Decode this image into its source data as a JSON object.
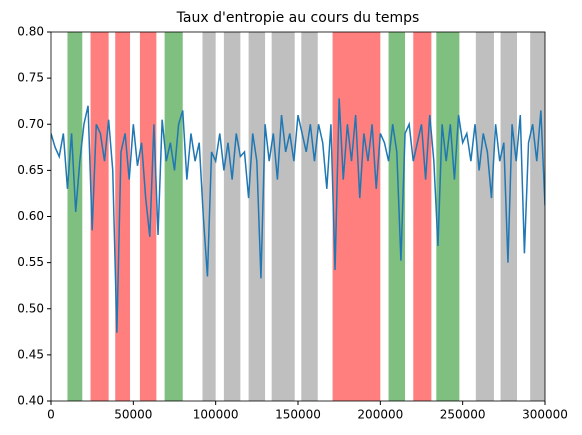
{
  "chart_data": {
    "type": "line",
    "title": "Taux d'entropie au cours du temps",
    "x": [
      0,
      2500,
      5000,
      7500,
      10000,
      12500,
      15000,
      17500,
      20000,
      22500,
      25000,
      27500,
      30000,
      32500,
      35000,
      37500,
      40000,
      42500,
      45000,
      47500,
      50000,
      52500,
      55000,
      57500,
      60000,
      62500,
      65000,
      67500,
      70000,
      72500,
      75000,
      77500,
      80000,
      82500,
      85000,
      87500,
      90000,
      92500,
      95000,
      97500,
      100000,
      102500,
      105000,
      107500,
      110000,
      112500,
      115000,
      117500,
      120000,
      122500,
      125000,
      127500,
      130000,
      132500,
      135000,
      137500,
      140000,
      142500,
      145000,
      147500,
      150000,
      152500,
      155000,
      157500,
      160000,
      162500,
      165000,
      167500,
      170000,
      172500,
      175000,
      177500,
      180000,
      182500,
      185000,
      187500,
      190000,
      192500,
      195000,
      197500,
      200000,
      202500,
      205000,
      207500,
      210000,
      212500,
      215000,
      217500,
      220000,
      222500,
      225000,
      227500,
      230000,
      232500,
      235000,
      237500,
      240000,
      242500,
      245000,
      247500,
      250000,
      252500,
      255000,
      257500,
      260000,
      262500,
      265000,
      267500,
      270000,
      272500,
      275000,
      277500,
      280000,
      282500,
      285000,
      287500,
      290000,
      292500,
      295000,
      297500,
      300000
    ],
    "series": [
      {
        "color": "#1f77b4",
        "values": [
          0.69,
          0.675,
          0.665,
          0.69,
          0.63,
          0.69,
          0.605,
          0.66,
          0.7,
          0.72,
          0.585,
          0.7,
          0.69,
          0.66,
          0.705,
          0.65,
          0.474,
          0.67,
          0.69,
          0.64,
          0.7,
          0.655,
          0.68,
          0.62,
          0.578,
          0.7,
          0.58,
          0.705,
          0.66,
          0.68,
          0.65,
          0.7,
          0.715,
          0.64,
          0.69,
          0.66,
          0.68,
          0.6,
          0.535,
          0.67,
          0.66,
          0.69,
          0.65,
          0.68,
          0.64,
          0.69,
          0.665,
          0.67,
          0.62,
          0.69,
          0.66,
          0.533,
          0.7,
          0.66,
          0.69,
          0.64,
          0.71,
          0.67,
          0.69,
          0.66,
          0.71,
          0.69,
          0.67,
          0.7,
          0.66,
          0.7,
          0.68,
          0.63,
          0.7,
          0.542,
          0.728,
          0.64,
          0.7,
          0.66,
          0.71,
          0.62,
          0.69,
          0.66,
          0.7,
          0.63,
          0.69,
          0.68,
          0.66,
          0.7,
          0.67,
          0.552,
          0.69,
          0.7,
          0.66,
          0.68,
          0.7,
          0.64,
          0.71,
          0.66,
          0.568,
          0.7,
          0.66,
          0.7,
          0.64,
          0.71,
          0.68,
          0.69,
          0.66,
          0.7,
          0.65,
          0.69,
          0.67,
          0.62,
          0.7,
          0.66,
          0.68,
          0.55,
          0.7,
          0.66,
          0.71,
          0.56,
          0.68,
          0.7,
          0.66,
          0.715,
          0.612
        ]
      }
    ],
    "spans": [
      {
        "start": 10000,
        "end": 19000,
        "color": "green"
      },
      {
        "start": 24000,
        "end": 35000,
        "color": "red"
      },
      {
        "start": 39000,
        "end": 48000,
        "color": "red"
      },
      {
        "start": 54000,
        "end": 64000,
        "color": "red"
      },
      {
        "start": 69000,
        "end": 80000,
        "color": "green"
      },
      {
        "start": 92000,
        "end": 100000,
        "color": "gray"
      },
      {
        "start": 105000,
        "end": 115000,
        "color": "gray"
      },
      {
        "start": 120000,
        "end": 130000,
        "color": "gray"
      },
      {
        "start": 134000,
        "end": 148000,
        "color": "gray"
      },
      {
        "start": 152000,
        "end": 162000,
        "color": "gray"
      },
      {
        "start": 171000,
        "end": 200000,
        "color": "red"
      },
      {
        "start": 205000,
        "end": 215000,
        "color": "green"
      },
      {
        "start": 220000,
        "end": 231000,
        "color": "red"
      },
      {
        "start": 234000,
        "end": 248000,
        "color": "green"
      },
      {
        "start": 258000,
        "end": 269000,
        "color": "gray"
      },
      {
        "start": 273000,
        "end": 283000,
        "color": "gray"
      },
      {
        "start": 291000,
        "end": 300000,
        "color": "gray"
      }
    ],
    "span_alpha": 0.5,
    "xlim": [
      0,
      300000
    ],
    "xticks": [
      0,
      50000,
      100000,
      150000,
      200000,
      250000,
      300000
    ],
    "ylim": [
      0.4,
      0.8
    ],
    "yticks": [
      {
        "value": 0.4,
        "label": "0.40"
      },
      0.45,
      {
        "value": 0.5,
        "label": "0.50"
      },
      0.55,
      {
        "value": 0.6,
        "label": "0.60"
      },
      0.65,
      {
        "value": 0.7,
        "label": "0.70"
      },
      0.75,
      {
        "value": 0.8,
        "label": "0.80"
      }
    ]
  }
}
